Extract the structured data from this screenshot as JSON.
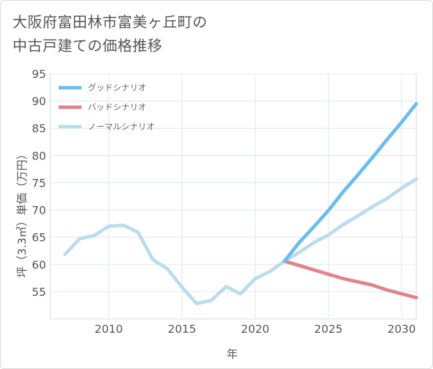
{
  "title_line1": "大阪府富田林市富美ヶ丘町の",
  "title_line2": "中古戸建ての価格推移",
  "chart_data": {
    "type": "line",
    "xlabel": "年",
    "ylabel": "坪（3.3㎡）単価（万円）",
    "xlim": [
      2006,
      2031
    ],
    "ylim": [
      50,
      95
    ],
    "xticks": [
      2010,
      2015,
      2020,
      2025,
      2030
    ],
    "yticks": [
      55,
      60,
      65,
      70,
      75,
      80,
      85,
      90,
      95
    ],
    "grid": true,
    "legend_position": "top-left",
    "series": [
      {
        "name": "グッドシナリオ",
        "color": "#6cbcec",
        "x": [
          2022,
          2023,
          2024,
          2025,
          2026,
          2027,
          2028,
          2029,
          2030,
          2031
        ],
        "y": [
          60.6,
          64.0,
          66.9,
          69.9,
          73.3,
          76.4,
          79.6,
          82.9,
          86.1,
          89.5
        ]
      },
      {
        "name": "バッドシナリオ",
        "color": "#e0848b",
        "x": [
          2022,
          2023,
          2024,
          2025,
          2026,
          2027,
          2028,
          2029,
          2030,
          2031
        ],
        "y": [
          60.6,
          59.8,
          59.0,
          58.2,
          57.4,
          56.8,
          56.2,
          55.3,
          54.6,
          53.9
        ]
      },
      {
        "name": "ノーマルシナリオ",
        "color": "#bcdcec",
        "x": [
          2007,
          2008,
          2009,
          2010,
          2011,
          2012,
          2013,
          2014,
          2015,
          2016,
          2017,
          2018,
          2019,
          2020,
          2021,
          2022,
          2023,
          2024,
          2025,
          2026,
          2027,
          2028,
          2029,
          2030,
          2031
        ],
        "y": [
          61.8,
          64.7,
          65.3,
          67.0,
          67.2,
          65.9,
          60.9,
          59.2,
          55.8,
          52.8,
          53.4,
          55.9,
          54.6,
          57.4,
          58.7,
          60.6,
          62.2,
          64.0,
          65.4,
          67.3,
          68.9,
          70.6,
          72.1,
          74.0,
          75.7
        ]
      }
    ]
  }
}
